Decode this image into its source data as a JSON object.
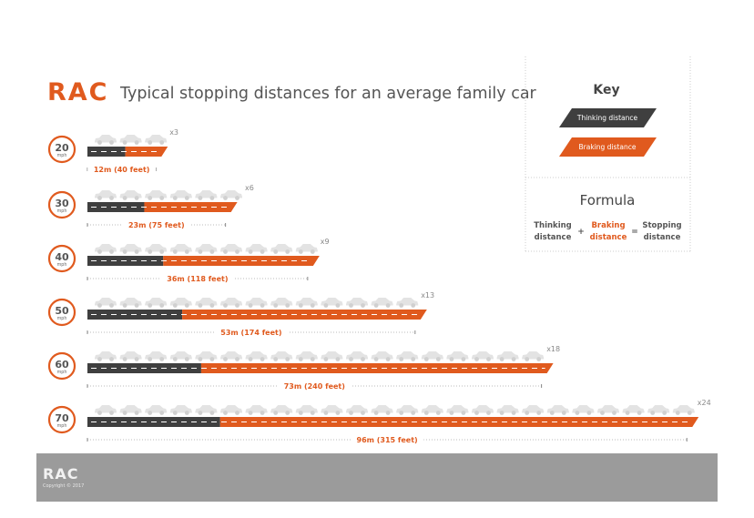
{
  "brand": {
    "logo_text": "RAC",
    "footer_logo_text": "RAC",
    "copyright": "Copyright © 2017",
    "accent_color": "#e05a1e",
    "thinking_color": "#3f3f3f",
    "footer_color": "#9b9b9b"
  },
  "chart_data": {
    "type": "bar",
    "stacked": true,
    "orientation": "horizontal",
    "title": "Typical stopping distances for an average family car",
    "speed_unit": "mph",
    "categories": [
      "20",
      "30",
      "40",
      "50",
      "60",
      "70"
    ],
    "series": [
      {
        "name": "Thinking distance",
        "values": [
          6,
          9,
          12,
          15,
          18,
          21
        ]
      },
      {
        "name": "Braking distance",
        "values": [
          6,
          14,
          24,
          38,
          55,
          75
        ]
      }
    ],
    "total_labels": [
      "12m (40 feet)",
      "23m (75 feet)",
      "36m (118 feet)",
      "53m (174 feet)",
      "73m (240 feet)",
      "96m (315 feet)"
    ],
    "car_multipliers": [
      "x3",
      "x6",
      "x9",
      "x13",
      "x18",
      "x24"
    ],
    "car_counts": [
      3,
      6,
      9,
      13,
      18,
      24
    ],
    "xlim": [
      0,
      96
    ],
    "legend_position": "right"
  },
  "key": {
    "title": "Key",
    "items": [
      "Thinking distance",
      "Braking distance"
    ]
  },
  "formula": {
    "title": "Formula",
    "term1_line1": "Thinking",
    "term1_line2": "distance",
    "op_plus": "+",
    "term2_line1": "Braking",
    "term2_line2": "distance",
    "op_equals": "=",
    "term3_line1": "Stopping",
    "term3_line2": "distance"
  }
}
